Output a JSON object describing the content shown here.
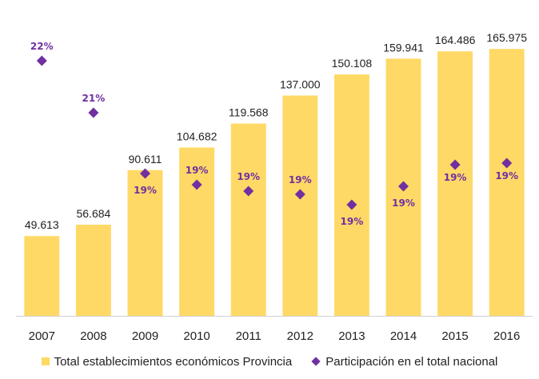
{
  "chart_data": {
    "type": "bar",
    "categories": [
      "2007",
      "2008",
      "2009",
      "2010",
      "2011",
      "2012",
      "2013",
      "2014",
      "2015",
      "2016"
    ],
    "series": [
      {
        "name": "Total establecimientos económicos Provincia",
        "type": "bar",
        "values": [
          49613,
          56684,
          90611,
          104682,
          119568,
          137000,
          150108,
          159941,
          164486,
          165975
        ],
        "labels": [
          "49.613",
          "56.684",
          "90.611",
          "104.682",
          "119.568",
          "137.000",
          "150.108",
          "159.941",
          "164.486",
          "165.975"
        ],
        "color": "#FFD966"
      },
      {
        "name": "Participación en el total nacional",
        "type": "scatter",
        "values": [
          22,
          21,
          19,
          19,
          19,
          19,
          19,
          19,
          19,
          19
        ],
        "labels": [
          "22%",
          "21%",
          "19%",
          "19%",
          "19%",
          "19%",
          "19%",
          "19%",
          "19%",
          "19%"
        ],
        "color": "#7030A0"
      }
    ],
    "ylim": [
      0,
      180000
    ],
    "y2lim": [
      0,
      25
    ],
    "grid": false,
    "legend_position": "bottom"
  }
}
